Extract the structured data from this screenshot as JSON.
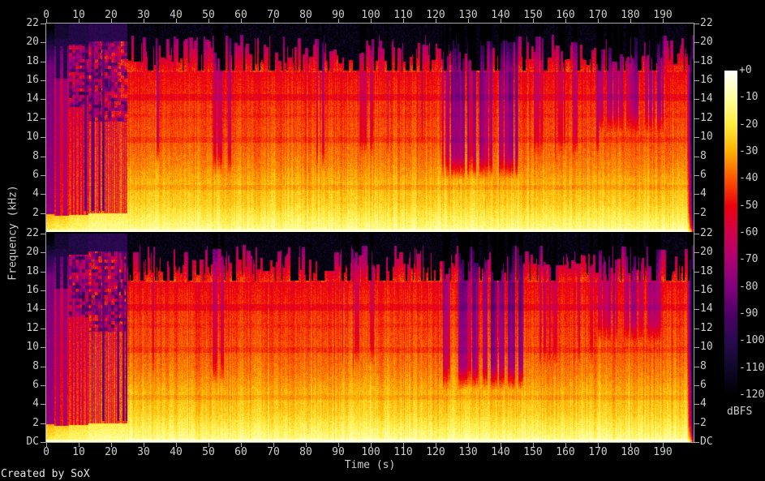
{
  "footer": {
    "credit": "Created by SoX"
  },
  "axes": {
    "time": {
      "label": "Time (s)",
      "tick_labels": [
        "0",
        "10",
        "20",
        "30",
        "40",
        "50",
        "60",
        "70",
        "80",
        "90",
        "100",
        "110",
        "120",
        "130",
        "140",
        "150",
        "160",
        "170",
        "180",
        "190"
      ]
    },
    "freq": {
      "label": "Frequency (kHz)",
      "panel1_tick_labels": [
        "22",
        "20",
        "18",
        "16",
        "14",
        "12",
        "10",
        "8",
        "6",
        "4",
        "2"
      ],
      "panel2_tick_labels": [
        "22",
        "20",
        "18",
        "16",
        "14",
        "12",
        "10",
        "8",
        "6",
        "4",
        "2",
        "DC"
      ]
    },
    "colorbar": {
      "label": "dBFS",
      "tick_labels": [
        "+0",
        "-10",
        "-20",
        "-30",
        "-40",
        "-50",
        "-60",
        "-70",
        "-80",
        "-90",
        "-100",
        "-110",
        "-120"
      ]
    }
  },
  "chart_data": {
    "type": "heatmap",
    "subtype": "audio-spectrogram",
    "title": "",
    "xlabel": "Time (s)",
    "ylabel": "Frequency (kHz)",
    "zlabel": "dBFS",
    "channels": 2,
    "x_range_s": [
      0,
      199.5
    ],
    "y_range_khz": [
      0,
      22
    ],
    "z_range_db": [
      -120,
      0
    ],
    "x_ticks_s": [
      0,
      10,
      20,
      30,
      40,
      50,
      60,
      70,
      80,
      90,
      100,
      110,
      120,
      130,
      140,
      150,
      160,
      170,
      180,
      190
    ],
    "y_ticks_khz_panel1": [
      22,
      20,
      18,
      16,
      14,
      12,
      10,
      8,
      6,
      4,
      2
    ],
    "y_ticks_khz_panel2": [
      22,
      20,
      18,
      16,
      14,
      12,
      10,
      8,
      6,
      4,
      2,
      0
    ],
    "colorbar_ticks_db": [
      0,
      -10,
      -20,
      -30,
      -40,
      -50,
      -60,
      -70,
      -80,
      -90,
      -100,
      -110,
      -120
    ],
    "palette_stops": [
      {
        "db": 0,
        "hex": "#ffffff"
      },
      {
        "db": -10,
        "hex": "#ffffa0"
      },
      {
        "db": -20,
        "hex": "#ffec3e"
      },
      {
        "db": -30,
        "hex": "#ffb000"
      },
      {
        "db": -40,
        "hex": "#fb5500"
      },
      {
        "db": -50,
        "hex": "#ec000d"
      },
      {
        "db": -60,
        "hex": "#d2004b"
      },
      {
        "db": -70,
        "hex": "#ae0074"
      },
      {
        "db": -80,
        "hex": "#81007f"
      },
      {
        "db": -90,
        "hex": "#4f0067"
      },
      {
        "db": -100,
        "hex": "#280a50"
      },
      {
        "db": -110,
        "hex": "#10082a"
      },
      {
        "db": -120,
        "hex": "#000000"
      }
    ],
    "energy_profile_db_by_khz": [
      [
        0,
        -5
      ],
      [
        0.5,
        -13
      ],
      [
        1.5,
        -18
      ],
      [
        3,
        -25
      ],
      [
        5,
        -29
      ],
      [
        7,
        -35
      ],
      [
        10,
        -41
      ],
      [
        13,
        -44
      ],
      [
        16,
        -49
      ],
      [
        16.9,
        -52
      ],
      [
        22,
        -120
      ]
    ],
    "spectral_dip_bands": [
      [
        13.85,
        14.55,
        5
      ],
      [
        9.45,
        10.05,
        3.5
      ],
      [
        4.45,
        4.95,
        3.5
      ],
      [
        12.1,
        12.5,
        2
      ]
    ],
    "sections": [
      {
        "t0": 0,
        "t1": 2.5,
        "kind": "quiet-intro",
        "description": "faint purple wash, bright low band only"
      },
      {
        "t0": 2.5,
        "t1": 7,
        "kind": "sparse-beats",
        "description": "isolated red beat columns on purple background"
      },
      {
        "t0": 7,
        "t1": 13,
        "kind": "buildup-1",
        "description": "denser beats, dappled dark texture 13-20 kHz"
      },
      {
        "t0": 13,
        "t1": 25,
        "kind": "buildup-2",
        "description": "bright beats with near-silent gap columns"
      },
      {
        "t0": 25,
        "t1": 197.3,
        "kind": "full-mix",
        "description": "continuous loud mix, red to 17 kHz, streaked purple to 20.5 kHz"
      },
      {
        "t0": 197.3,
        "t1": 199.5,
        "kind": "fade-out",
        "description": "rapid fade to dark blue column at track end"
      }
    ],
    "quiet_gap_clusters": [
      [
        122,
        146,
        26,
        16,
        38,
        5.5
      ],
      [
        170,
        190,
        22,
        12,
        26,
        10.5
      ],
      [
        51,
        57,
        4,
        8,
        18,
        6
      ],
      [
        95,
        100,
        3,
        8,
        16,
        8
      ],
      [
        148,
        168,
        6,
        8,
        18,
        8
      ]
    ],
    "render_seed": 20
  }
}
